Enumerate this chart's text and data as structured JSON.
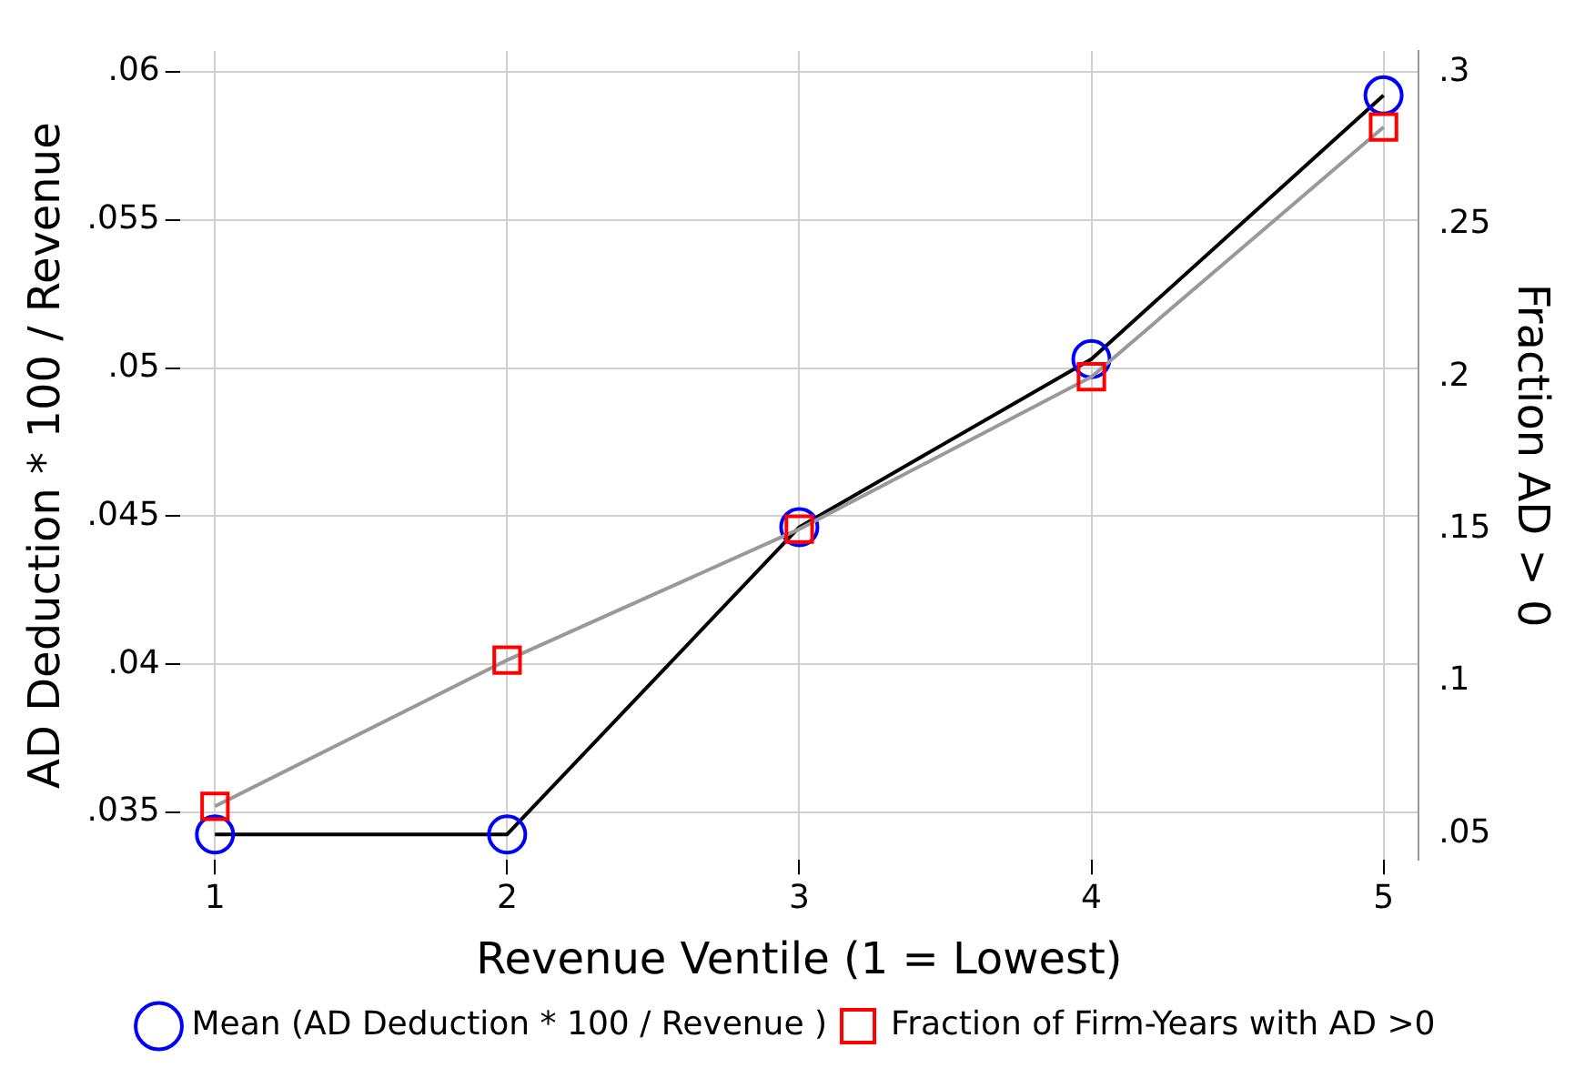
{
  "chart_data": {
    "type": "line",
    "xlabel": "Revenue Ventile (1 = Lowest)",
    "ylabel": "AD Deduction * 100 / Revenue",
    "y2label": "Fraction AD > 0",
    "x": [
      1,
      2,
      3,
      4,
      5
    ],
    "xlim": [
      0.88,
      5.12
    ],
    "xticks": [
      1,
      2,
      3,
      4,
      5
    ],
    "ylim": [
      0.0334,
      0.0607
    ],
    "yticks": [
      {
        "value": 0.035,
        "label": ".035"
      },
      {
        "value": 0.04,
        "label": ".04"
      },
      {
        "value": 0.045,
        "label": ".045"
      },
      {
        "value": 0.05,
        "label": ".05"
      },
      {
        "value": 0.055,
        "label": ".055"
      },
      {
        "value": 0.06,
        "label": ".06"
      }
    ],
    "y2lim": [
      0.0414,
      0.307
    ],
    "y2ticks": [
      {
        "value": 0.05,
        "label": ".05"
      },
      {
        "value": 0.1,
        "label": ".1"
      },
      {
        "value": 0.15,
        "label": ".15"
      },
      {
        "value": 0.2,
        "label": ".2"
      },
      {
        "value": 0.25,
        "label": ".25"
      },
      {
        "value": 0.3,
        "label": ".3"
      }
    ],
    "grid": true,
    "legend": "bottom",
    "series": [
      {
        "name": "Mean (AD Deduction * 100 / Revenue )",
        "color": "#0000ff",
        "marker": "circle",
        "values": [
          0.03426,
          0.03426,
          0.04463,
          0.0503,
          0.0592
        ]
      },
      {
        "name": "Fraction of Firm-Years with AD >0",
        "color": "#ff0000",
        "marker": "square",
        "axis": "y2",
        "values": [
          0.059,
          0.107,
          0.15,
          0.2,
          0.282
        ]
      }
    ]
  }
}
